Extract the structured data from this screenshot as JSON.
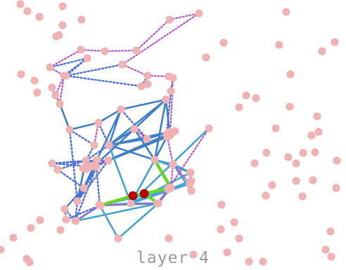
{
  "caption": "layer 4",
  "colors": {
    "background": "#ffffff",
    "node": "#f0b3b3",
    "highlight_node": "#c40000",
    "highlight_node_stroke": "#7a0000",
    "edge_solid_dark": "#3f7fc9",
    "edge_solid_light": "#45a3cf",
    "edge_dotted_blue": "#4a6fd6",
    "edge_dotted_purple": "#b455c9",
    "edge_highlight": "#6ad428",
    "caption": "#999999"
  },
  "graph": {
    "nodes": [
      "a01",
      "a02",
      "a03",
      "a04",
      "a05",
      "a06",
      "a07",
      "a08",
      "a09",
      "a10",
      "a11",
      "a12",
      "a13",
      "a14",
      "a15",
      "a16",
      "a17",
      "a18",
      "a19",
      "a20",
      "a21",
      "a22",
      "a23",
      "a24",
      "a25",
      "a26",
      "a27",
      "a28",
      "a29",
      "a30",
      "a31",
      "a32",
      "a33",
      "a34",
      "a35",
      "a36",
      "a37",
      "a38",
      "a39",
      "a40",
      "a41",
      "a42",
      "a43",
      "a44",
      "a45",
      "a46",
      "a47",
      "a48",
      "a49",
      "a50",
      "a51",
      "a52",
      "a53",
      "a54",
      "a55",
      "a56",
      "a57",
      "a58",
      "a59",
      "a60",
      "a61",
      "a62",
      "a63",
      "a64",
      "a65",
      "a66",
      "a67",
      "a68",
      "a69",
      "a70",
      "a71",
      "a72",
      "a73",
      "a74",
      "a75",
      "a76",
      "a77",
      "a78",
      "a79",
      "a80",
      "a81",
      "a82",
      "a83",
      "a84",
      "a85",
      "a86",
      "a87",
      "a88",
      "a89",
      "a90",
      "a91",
      "a92",
      "a93",
      "a94",
      "a95",
      "a96",
      "a97",
      "a98",
      "a99",
      "b00",
      "b01",
      "b02",
      "b03",
      "b04",
      "b05",
      "b06",
      "b07",
      "b08",
      "b09",
      "b10",
      "b11",
      "b12",
      "b13",
      "b14",
      "b15",
      "b16",
      "b17",
      "b18",
      "b19",
      "b20",
      "b21",
      "b22",
      "b23",
      "b24",
      "b25",
      "b26",
      "b27"
    ],
    "highlight_nodes": [
      "h1",
      "h2"
    ],
    "edges": [
      {
        "from": "a53",
        "to": "a62",
        "style": "solid_dark"
      },
      {
        "from": "a62",
        "to": "a63",
        "style": "solid_dark"
      },
      {
        "from": "a56",
        "to": "a62",
        "style": "solid_dark"
      },
      {
        "from": "a57",
        "to": "a62",
        "style": "solid_dark"
      },
      {
        "from": "a62",
        "to": "a58",
        "style": "solid_dark"
      },
      {
        "from": "a57",
        "to": "a65",
        "style": "solid_dark"
      },
      {
        "from": "a58",
        "to": "a65",
        "style": "solid_dark"
      },
      {
        "from": "a57",
        "to": "a60",
        "style": "solid_dark"
      },
      {
        "from": "a60",
        "to": "a58",
        "style": "solid_dark"
      },
      {
        "from": "a57",
        "to": "a61",
        "style": "solid_dark"
      },
      {
        "from": "a61",
        "to": "a58",
        "style": "solid_dark"
      },
      {
        "from": "a57",
        "to": "a59",
        "style": "solid_dark"
      },
      {
        "from": "a64",
        "to": "a65",
        "style": "solid_dark"
      },
      {
        "from": "a56",
        "to": "a63",
        "style": "solid_dark"
      },
      {
        "from": "a53",
        "to": "a56",
        "style": "solid_dark"
      },
      {
        "from": "a54",
        "to": "a56",
        "style": "solid_dark"
      },
      {
        "from": "a56",
        "to": "a58",
        "style": "solid_dark"
      },
      {
        "from": "a56",
        "to": "a55",
        "style": "solid_dark"
      },
      {
        "from": "a63",
        "to": "a58",
        "style": "solid_dark"
      },
      {
        "from": "a55",
        "to": "a58",
        "style": "solid_dark"
      },
      {
        "from": "a40",
        "to": "a53",
        "style": "solid_dark"
      },
      {
        "from": "a50",
        "to": "a53",
        "style": "solid_dark"
      },
      {
        "from": "a44",
        "to": "a50",
        "style": "solid_dark"
      },
      {
        "from": "a63",
        "to": "a54",
        "style": "solid_dark"
      },
      {
        "from": "a63",
        "to": "a66",
        "style": "solid_light"
      },
      {
        "from": "a63",
        "to": "a67",
        "style": "solid_light"
      },
      {
        "from": "a66",
        "to": "a67",
        "style": "solid_light"
      },
      {
        "from": "a70",
        "to": "a66",
        "style": "solid_light"
      },
      {
        "from": "a63",
        "to": "a72",
        "style": "solid_light"
      },
      {
        "from": "a76",
        "to": "a63",
        "style": "solid_light"
      },
      {
        "from": "a76",
        "to": "a72",
        "style": "solid_light"
      },
      {
        "from": "a76",
        "to": "a67",
        "style": "solid_light"
      },
      {
        "from": "a76",
        "to": "a56",
        "style": "solid_light"
      },
      {
        "from": "a76",
        "to": "a77",
        "style": "solid_light"
      },
      {
        "from": "a76",
        "to": "a73",
        "style": "solid_light"
      },
      {
        "from": "a73",
        "to": "a77",
        "style": "solid_light"
      },
      {
        "from": "a76",
        "to": "a79",
        "style": "solid_light"
      },
      {
        "from": "a71",
        "to": "a76",
        "style": "solid_light"
      },
      {
        "from": "a68",
        "to": "a76",
        "style": "solid_light"
      },
      {
        "from": "a76",
        "to": "a74",
        "style": "solid_light"
      },
      {
        "from": "a69",
        "to": "a76",
        "style": "solid_light"
      },
      {
        "from": "a74",
        "to": "a78",
        "style": "solid_light"
      },
      {
        "from": "a72",
        "to": "a78",
        "style": "solid_light"
      },
      {
        "from": "a72",
        "to": "a77",
        "style": "solid_light"
      },
      {
        "from": "a77",
        "to": "a76",
        "style": "solid_light"
      },
      {
        "from": "a63",
        "to": "a76",
        "style": "solid_light"
      },
      {
        "from": "a79",
        "to": "a80",
        "style": "solid_light"
      },
      {
        "from": "a80",
        "to": "a78",
        "style": "solid_light"
      },
      {
        "from": "a79",
        "to": "a81",
        "style": "solid_light"
      },
      {
        "from": "a81",
        "to": "a78",
        "style": "solid_light"
      },
      {
        "from": "a79",
        "to": "a78",
        "style": "solid_light"
      },
      {
        "from": "a72",
        "to": "a79",
        "style": "solid_light"
      },
      {
        "from": "a79",
        "to": "h1",
        "style": "highlight"
      },
      {
        "from": "h1",
        "to": "h2",
        "style": "highlight"
      },
      {
        "from": "h2",
        "to": "a72",
        "style": "highlight"
      },
      {
        "from": "a63",
        "to": "a72",
        "style": "highlight"
      },
      {
        "from": "h2",
        "to": "a78",
        "style": "highlight"
      },
      {
        "from": "a07",
        "to": "a08",
        "style": "dotted_purple"
      },
      {
        "from": "a08",
        "to": "a09",
        "style": "dotted_purple"
      },
      {
        "from": "a09",
        "to": "a10",
        "style": "dotted_purple"
      },
      {
        "from": "a10",
        "to": "a11",
        "style": "dotted_purple"
      },
      {
        "from": "a11",
        "to": "a12",
        "style": "dotted_purple"
      },
      {
        "from": "a12",
        "to": "a13",
        "style": "dotted_purple"
      },
      {
        "from": "a13",
        "to": "a14",
        "style": "dotted_purple"
      },
      {
        "from": "a14",
        "to": "a15",
        "style": "dotted_purple"
      },
      {
        "from": "a07",
        "to": "a16",
        "style": "dotted_purple"
      },
      {
        "from": "a16",
        "to": "a17",
        "style": "dotted_purple"
      },
      {
        "from": "a16",
        "to": "a18",
        "style": "dotted_purple"
      },
      {
        "from": "a07",
        "to": "a19",
        "style": "dotted_blue"
      },
      {
        "from": "a19",
        "to": "a20",
        "style": "dotted_blue"
      },
      {
        "from": "a20",
        "to": "a13",
        "style": "dotted_blue"
      },
      {
        "from": "a19",
        "to": "a16",
        "style": "dotted_blue"
      },
      {
        "from": "a20",
        "to": "a21",
        "style": "dotted_blue"
      },
      {
        "from": "a21",
        "to": "a14",
        "style": "dotted_blue"
      },
      {
        "from": "a17",
        "to": "a23",
        "style": "dotted_blue"
      },
      {
        "from": "a18",
        "to": "a23",
        "style": "dotted_blue"
      },
      {
        "from": "a17",
        "to": "a22",
        "style": "solid_dark"
      },
      {
        "from": "a22",
        "to": "a40",
        "style": "solid_dark"
      },
      {
        "from": "a15",
        "to": "a30",
        "style": "dotted_blue"
      },
      {
        "from": "a30",
        "to": "a31",
        "style": "dotted_blue"
      },
      {
        "from": "a31",
        "to": "a64",
        "style": "dotted_blue"
      },
      {
        "from": "a30",
        "to": "a65",
        "style": "dotted_purple"
      },
      {
        "from": "a65",
        "to": "a64",
        "style": "dotted_purple"
      },
      {
        "from": "a64",
        "to": "a66",
        "style": "dotted_purple"
      },
      {
        "from": "a66",
        "to": "a72",
        "style": "dotted_purple"
      },
      {
        "from": "a73",
        "to": "a74",
        "style": "dotted_purple"
      },
      {
        "from": "a22",
        "to": "a41",
        "style": "dotted_blue"
      },
      {
        "from": "a40",
        "to": "a41",
        "style": "dotted_purple"
      },
      {
        "from": "a41",
        "to": "a44",
        "style": "dotted_blue"
      },
      {
        "from": "a40",
        "to": "a42",
        "style": "dotted_blue"
      },
      {
        "from": "a42",
        "to": "a44",
        "style": "dotted_blue"
      },
      {
        "from": "a43",
        "to": "a44",
        "style": "dotted_blue"
      },
      {
        "from": "a43",
        "to": "a46",
        "style": "dotted_blue"
      },
      {
        "from": "a44",
        "to": "a46",
        "style": "dotted_blue"
      },
      {
        "from": "a43",
        "to": "a45",
        "style": "dotted_blue"
      },
      {
        "from": "a46",
        "to": "a48",
        "style": "dotted_blue"
      },
      {
        "from": "a45",
        "to": "a48",
        "style": "dotted_blue"
      },
      {
        "from": "a48",
        "to": "a49",
        "style": "dotted_blue"
      },
      {
        "from": "a49",
        "to": "a51",
        "style": "dotted_blue"
      },
      {
        "from": "a49",
        "to": "a52",
        "style": "dotted_blue"
      },
      {
        "from": "a52",
        "to": "a79",
        "style": "dotted_blue"
      },
      {
        "from": "a50",
        "to": "a46",
        "style": "dotted_blue"
      },
      {
        "from": "a44",
        "to": "a47",
        "style": "dotted_blue"
      },
      {
        "from": "a47",
        "to": "a50",
        "style": "dotted_blue"
      },
      {
        "from": "a50",
        "to": "a51",
        "style": "dotted_blue"
      },
      {
        "from": "a51",
        "to": "a46",
        "style": "dotted_blue"
      },
      {
        "from": "a51",
        "to": "a80",
        "style": "dotted_blue"
      },
      {
        "from": "a48",
        "to": "a50",
        "style": "dotted_blue"
      },
      {
        "from": "a44",
        "to": "a45",
        "style": "dotted_blue"
      },
      {
        "from": "a49",
        "to": "a48",
        "style": "dotted_blue"
      },
      {
        "from": "a46",
        "to": "a79",
        "style": "dotted_blue"
      },
      {
        "from": "a43",
        "to": "a47",
        "style": "dotted_blue"
      },
      {
        "from": "a47",
        "to": "a46",
        "style": "dotted_purple"
      },
      {
        "from": "a51",
        "to": "a79",
        "style": "dotted_purple"
      },
      {
        "from": "a44",
        "to": "a57",
        "style": "dotted_blue"
      },
      {
        "from": "a22",
        "to": "a50",
        "style": "dotted_blue"
      },
      {
        "from": "a55",
        "to": "a53",
        "style": "dotted_blue"
      },
      {
        "from": "a54",
        "to": "a55",
        "style": "dotted_purple"
      },
      {
        "from": "a71",
        "to": "a73",
        "style": "dotted_purple"
      },
      {
        "from": "a73",
        "to": "a75",
        "style": "dotted_purple"
      },
      {
        "from": "a75",
        "to": "a74",
        "style": "dotted_purple"
      },
      {
        "from": "a77",
        "to": "a78",
        "style": "dotted_purple"
      },
      {
        "from": "a67",
        "to": "a69",
        "style": "dotted_purple"
      },
      {
        "from": "a69",
        "to": "a66",
        "style": "dotted_purple"
      }
    ]
  }
}
